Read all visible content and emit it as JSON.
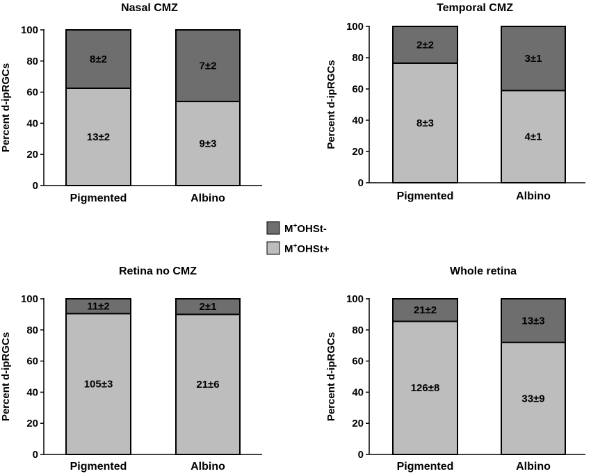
{
  "chart_data": [
    {
      "type": "bar",
      "stacked": true,
      "title": "Nasal CMZ",
      "ylabel": "Percent d-ipRGCs",
      "ylim": [
        0,
        100
      ],
      "yticks": [
        "0",
        "20",
        "40",
        "60",
        "80",
        "100"
      ],
      "categories": [
        "Pigmented",
        "Albino"
      ],
      "series": [
        {
          "name": "M+OHSt+",
          "values": [
            62.5,
            54
          ],
          "labels": [
            "13±2",
            "9±3"
          ]
        },
        {
          "name": "M+OHSt-",
          "values": [
            37.5,
            46
          ],
          "labels": [
            "8±2",
            "7±2"
          ]
        }
      ]
    },
    {
      "type": "bar",
      "stacked": true,
      "title": "Temporal CMZ",
      "ylabel": "Percent d-ipRGCs",
      "ylim": [
        0,
        100
      ],
      "yticks": [
        "0",
        "20",
        "40",
        "60",
        "80",
        "100"
      ],
      "categories": [
        "Pigmented",
        "Albino"
      ],
      "series": [
        {
          "name": "M+OHSt+",
          "values": [
            76.5,
            59
          ],
          "labels": [
            "8±3",
            "4±1"
          ]
        },
        {
          "name": "M+OHSt-",
          "values": [
            23.5,
            41
          ],
          "labels": [
            "2±2",
            "3±1"
          ]
        }
      ]
    },
    {
      "type": "bar",
      "stacked": true,
      "title": "Retina no CMZ",
      "ylabel": "Percent d-ipRGCs",
      "ylim": [
        0,
        100
      ],
      "yticks": [
        "0",
        "20",
        "40",
        "60",
        "80",
        "100"
      ],
      "categories": [
        "Pigmented",
        "Albino"
      ],
      "series": [
        {
          "name": "M+OHSt+",
          "values": [
            90.5,
            90
          ],
          "labels": [
            "105±3",
            "21±6"
          ]
        },
        {
          "name": "M+OHSt-",
          "values": [
            9.5,
            10
          ],
          "labels": [
            "11±2",
            "2±1"
          ]
        }
      ]
    },
    {
      "type": "bar",
      "stacked": true,
      "title": "Whole retina",
      "ylabel": "Percent d-ipRGCs",
      "ylim": [
        0,
        100
      ],
      "yticks": [
        "0",
        "20",
        "40",
        "60",
        "80",
        "100"
      ],
      "categories": [
        "Pigmented",
        "Albino"
      ],
      "series": [
        {
          "name": "M+OHSt+",
          "values": [
            85.5,
            72
          ],
          "labels": [
            "126±8",
            "33±9"
          ]
        },
        {
          "name": "M+OHSt-",
          "values": [
            14.5,
            28
          ],
          "labels": [
            "21±2",
            "13±3"
          ]
        }
      ]
    }
  ],
  "legend": {
    "placement": "center",
    "items": [
      {
        "prefix": "M",
        "sup": "+",
        "suffix": "OHSt-",
        "color": "#6e6e6e"
      },
      {
        "prefix": "M",
        "sup": "+",
        "suffix": "OHSt+",
        "color": "#bdbdbd"
      }
    ]
  },
  "colors": {
    "lower": "#bdbdbd",
    "upper": "#6e6e6e",
    "axis": "#000000"
  }
}
